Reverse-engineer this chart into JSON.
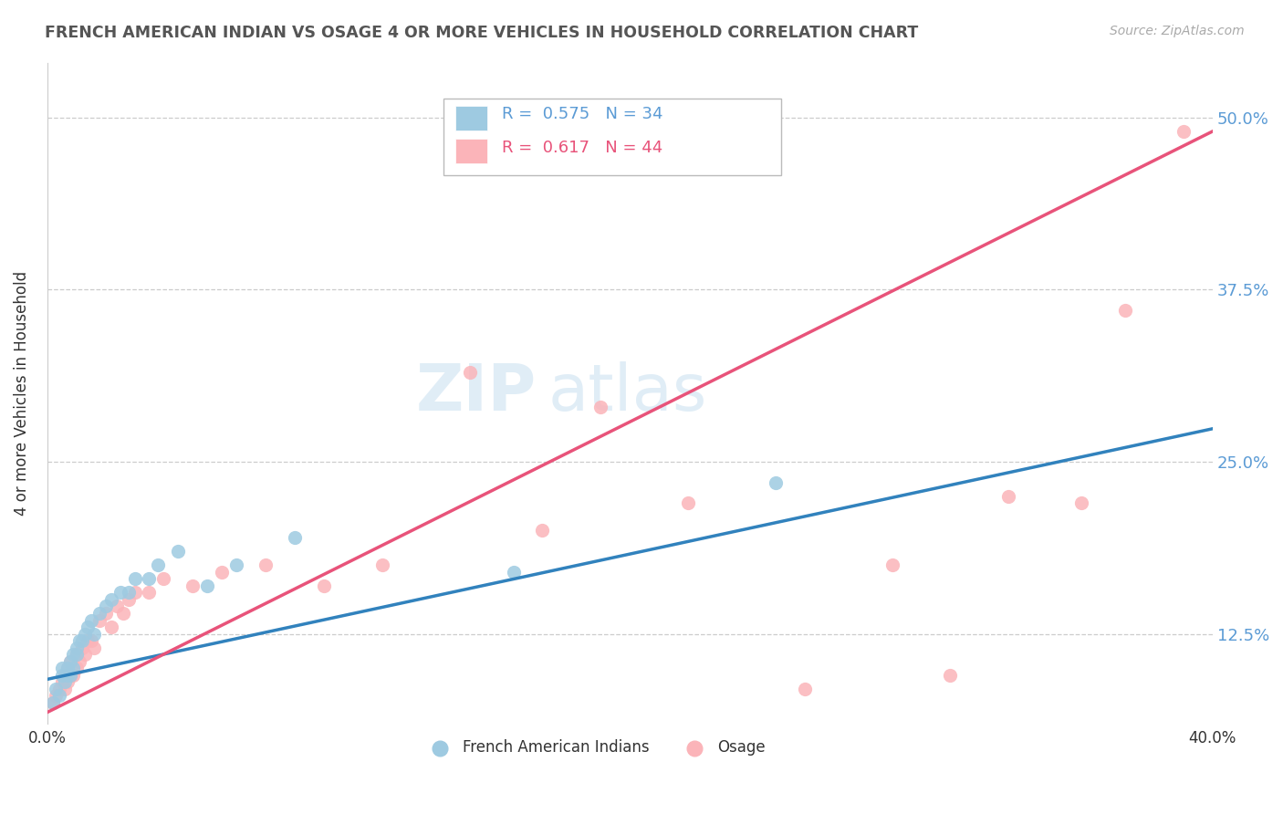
{
  "title": "FRENCH AMERICAN INDIAN VS OSAGE 4 OR MORE VEHICLES IN HOUSEHOLD CORRELATION CHART",
  "source": "Source: ZipAtlas.com",
  "ylabel": "4 or more Vehicles in Household",
  "legend_label1": "French American Indians",
  "legend_label2": "Osage",
  "R1": 0.575,
  "N1": 34,
  "R2": 0.617,
  "N2": 44,
  "blue_color": "#9ecae1",
  "pink_color": "#fbb4b9",
  "blue_line_color": "#3182bd",
  "pink_line_color": "#e8537a",
  "xlim": [
    0.0,
    0.4
  ],
  "ylim": [
    0.06,
    0.54
  ],
  "ytick_vals": [
    0.125,
    0.25,
    0.375,
    0.5
  ],
  "ytick_labels": [
    "12.5%",
    "25.0%",
    "37.5%",
    "50.0%"
  ],
  "blue_line_intercept": 0.092,
  "blue_line_slope": 0.455,
  "pink_line_intercept": 0.068,
  "pink_line_slope": 1.055,
  "french_x": [
    0.002,
    0.003,
    0.004,
    0.005,
    0.005,
    0.006,
    0.007,
    0.007,
    0.008,
    0.008,
    0.009,
    0.009,
    0.01,
    0.01,
    0.011,
    0.012,
    0.013,
    0.014,
    0.015,
    0.016,
    0.018,
    0.02,
    0.022,
    0.025,
    0.028,
    0.03,
    0.035,
    0.038,
    0.045,
    0.055,
    0.065,
    0.085,
    0.16,
    0.25
  ],
  "french_y": [
    0.075,
    0.085,
    0.08,
    0.095,
    0.1,
    0.09,
    0.095,
    0.1,
    0.105,
    0.095,
    0.1,
    0.11,
    0.115,
    0.11,
    0.12,
    0.12,
    0.125,
    0.13,
    0.135,
    0.125,
    0.14,
    0.145,
    0.15,
    0.155,
    0.155,
    0.165,
    0.165,
    0.175,
    0.185,
    0.16,
    0.175,
    0.195,
    0.17,
    0.235
  ],
  "osage_x": [
    0.002,
    0.003,
    0.004,
    0.005,
    0.006,
    0.006,
    0.007,
    0.007,
    0.008,
    0.008,
    0.009,
    0.01,
    0.01,
    0.011,
    0.012,
    0.013,
    0.014,
    0.015,
    0.016,
    0.018,
    0.02,
    0.022,
    0.024,
    0.026,
    0.028,
    0.03,
    0.035,
    0.04,
    0.05,
    0.06,
    0.075,
    0.095,
    0.115,
    0.145,
    0.17,
    0.19,
    0.22,
    0.26,
    0.29,
    0.31,
    0.33,
    0.355,
    0.37,
    0.39
  ],
  "osage_y": [
    0.075,
    0.08,
    0.085,
    0.09,
    0.085,
    0.095,
    0.09,
    0.1,
    0.095,
    0.105,
    0.095,
    0.1,
    0.11,
    0.105,
    0.115,
    0.11,
    0.12,
    0.12,
    0.115,
    0.135,
    0.14,
    0.13,
    0.145,
    0.14,
    0.15,
    0.155,
    0.155,
    0.165,
    0.16,
    0.17,
    0.175,
    0.16,
    0.175,
    0.315,
    0.2,
    0.29,
    0.22,
    0.085,
    0.175,
    0.095,
    0.225,
    0.22,
    0.36,
    0.49
  ]
}
